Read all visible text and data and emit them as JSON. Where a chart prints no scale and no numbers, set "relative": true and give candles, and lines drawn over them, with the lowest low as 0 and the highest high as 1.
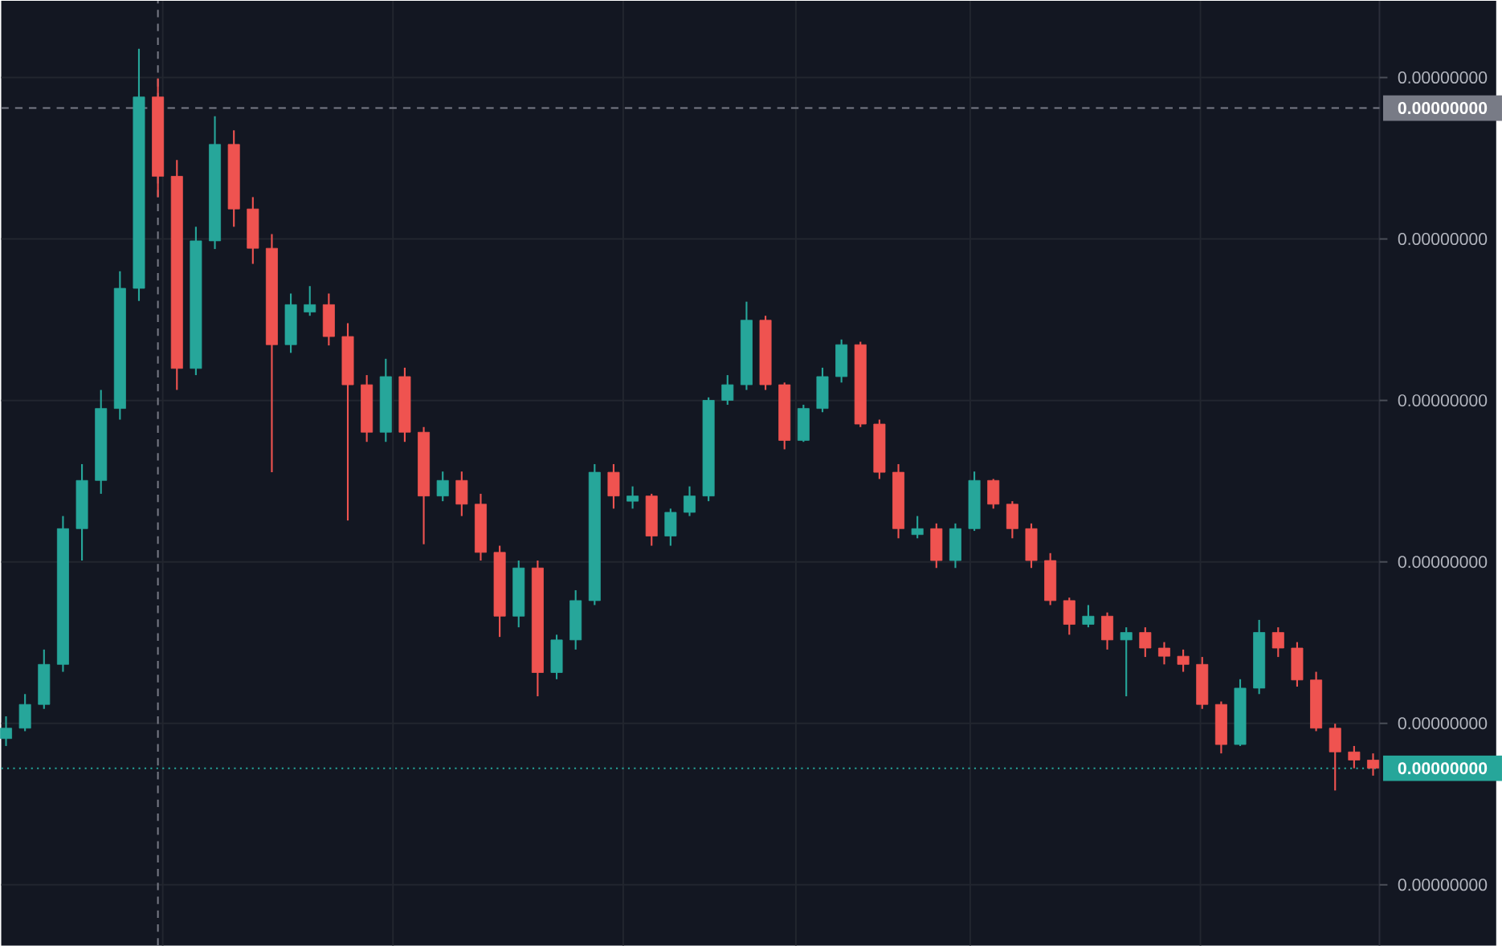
{
  "chart_data": {
    "type": "candlestick",
    "relative": true,
    "grid": true,
    "categories": [
      null,
      null,
      null,
      null,
      null,
      null,
      null,
      null,
      null,
      null,
      null,
      null,
      null,
      null,
      null,
      null,
      null,
      null,
      null,
      null,
      null,
      null,
      null,
      null,
      null,
      null,
      null,
      null,
      null,
      null,
      null,
      null,
      null,
      null,
      null,
      null,
      null,
      null,
      null,
      null,
      null,
      null,
      null,
      null,
      null,
      null,
      null,
      null,
      null,
      null,
      null,
      null,
      null,
      null,
      null,
      null,
      null,
      null,
      null,
      null,
      null,
      null,
      null,
      null,
      null,
      null,
      null,
      null,
      null,
      null,
      null,
      null,
      null
    ],
    "ohlc": [
      [
        0.07,
        0.1,
        0.06,
        0.084
      ],
      [
        0.084,
        0.13,
        0.08,
        0.116
      ],
      [
        0.116,
        0.19,
        0.11,
        0.17
      ],
      [
        0.17,
        0.37,
        0.16,
        0.353
      ],
      [
        0.353,
        0.44,
        0.31,
        0.418
      ],
      [
        0.418,
        0.54,
        0.4,
        0.515
      ],
      [
        0.515,
        0.7,
        0.5,
        0.677
      ],
      [
        0.677,
        1.0,
        0.66,
        0.935
      ],
      [
        0.935,
        0.96,
        0.8,
        0.828
      ],
      [
        0.828,
        0.85,
        0.54,
        0.569
      ],
      [
        0.569,
        0.76,
        0.56,
        0.741
      ],
      [
        0.741,
        0.909,
        0.73,
        0.871
      ],
      [
        0.871,
        0.89,
        0.76,
        0.784
      ],
      [
        0.784,
        0.8,
        0.71,
        0.731
      ],
      [
        0.731,
        0.75,
        0.429,
        0.601
      ],
      [
        0.601,
        0.67,
        0.59,
        0.655
      ],
      [
        0.645,
        0.68,
        0.64,
        0.655
      ],
      [
        0.655,
        0.67,
        0.6,
        0.612
      ],
      [
        0.612,
        0.63,
        0.364,
        0.547
      ],
      [
        0.547,
        0.56,
        0.47,
        0.483
      ],
      [
        0.483,
        0.582,
        0.47,
        0.558
      ],
      [
        0.558,
        0.57,
        0.47,
        0.483
      ],
      [
        0.483,
        0.49,
        0.332,
        0.397
      ],
      [
        0.397,
        0.43,
        0.39,
        0.418
      ],
      [
        0.418,
        0.43,
        0.37,
        0.386
      ],
      [
        0.386,
        0.4,
        0.31,
        0.321
      ],
      [
        0.321,
        0.33,
        0.207,
        0.235
      ],
      [
        0.235,
        0.31,
        0.22,
        0.3
      ],
      [
        0.3,
        0.31,
        0.127,
        0.159
      ],
      [
        0.159,
        0.21,
        0.15,
        0.203
      ],
      [
        0.203,
        0.27,
        0.19,
        0.256
      ],
      [
        0.256,
        0.44,
        0.25,
        0.429
      ],
      [
        0.429,
        0.44,
        0.38,
        0.397
      ],
      [
        0.39,
        0.41,
        0.38,
        0.397
      ],
      [
        0.397,
        0.4,
        0.33,
        0.343
      ],
      [
        0.343,
        0.38,
        0.33,
        0.375
      ],
      [
        0.375,
        0.41,
        0.37,
        0.397
      ],
      [
        0.397,
        0.53,
        0.39,
        0.526
      ],
      [
        0.526,
        0.56,
        0.52,
        0.547
      ],
      [
        0.547,
        0.659,
        0.54,
        0.634
      ],
      [
        0.634,
        0.64,
        0.54,
        0.547
      ],
      [
        0.547,
        0.55,
        0.46,
        0.472
      ],
      [
        0.472,
        0.52,
        0.47,
        0.515
      ],
      [
        0.515,
        0.57,
        0.51,
        0.558
      ],
      [
        0.558,
        0.608,
        0.55,
        0.601
      ],
      [
        0.601,
        0.605,
        0.49,
        0.494
      ],
      [
        0.494,
        0.5,
        0.42,
        0.429
      ],
      [
        0.429,
        0.44,
        0.34,
        0.353
      ],
      [
        0.345,
        0.37,
        0.34,
        0.353
      ],
      [
        0.353,
        0.36,
        0.3,
        0.31
      ],
      [
        0.31,
        0.36,
        0.3,
        0.353
      ],
      [
        0.353,
        0.43,
        0.35,
        0.418
      ],
      [
        0.418,
        0.42,
        0.38,
        0.386
      ],
      [
        0.386,
        0.39,
        0.34,
        0.353
      ],
      [
        0.353,
        0.36,
        0.3,
        0.31
      ],
      [
        0.31,
        0.32,
        0.25,
        0.256
      ],
      [
        0.256,
        0.26,
        0.21,
        0.224
      ],
      [
        0.224,
        0.25,
        0.22,
        0.235
      ],
      [
        0.235,
        0.24,
        0.19,
        0.203
      ],
      [
        0.203,
        0.22,
        0.127,
        0.213
      ],
      [
        0.213,
        0.22,
        0.18,
        0.192
      ],
      [
        0.192,
        0.2,
        0.17,
        0.181
      ],
      [
        0.181,
        0.19,
        0.16,
        0.17
      ],
      [
        0.17,
        0.18,
        0.11,
        0.116
      ],
      [
        0.116,
        0.12,
        0.05,
        0.062
      ],
      [
        0.062,
        0.15,
        0.06,
        0.138
      ],
      [
        0.138,
        0.23,
        0.13,
        0.213
      ],
      [
        0.213,
        0.22,
        0.18,
        0.192
      ],
      [
        0.192,
        0.2,
        0.14,
        0.149
      ],
      [
        0.149,
        0.16,
        0.08,
        0.084
      ],
      [
        0.084,
        0.09,
        0,
        0.052
      ],
      [
        0.052,
        0.06,
        0.03,
        0.041
      ],
      [
        0.041,
        0.05,
        0.02,
        0.03
      ]
    ],
    "colors": [
      "#26a69a",
      "#26a69a",
      "#26a69a",
      "#26a69a",
      "#26a69a",
      "#26a69a",
      "#26a69a",
      "#26a69a",
      "#ef5350",
      "#ef5350",
      "#26a69a",
      "#26a69a",
      "#ef5350",
      "#ef5350",
      "#ef5350",
      "#26a69a",
      "#26a69a",
      "#ef5350",
      "#ef5350",
      "#ef5350",
      "#26a69a",
      "#ef5350",
      "#ef5350",
      "#26a69a",
      "#ef5350",
      "#ef5350",
      "#ef5350",
      "#26a69a",
      "#ef5350",
      "#26a69a",
      "#26a69a",
      "#26a69a",
      "#ef5350",
      "#26a69a",
      "#ef5350",
      "#26a69a",
      "#26a69a",
      "#26a69a",
      "#26a69a",
      "#26a69a",
      "#ef5350",
      "#ef5350",
      "#26a69a",
      "#26a69a",
      "#26a69a",
      "#ef5350",
      "#ef5350",
      "#ef5350",
      "#26a69a",
      "#ef5350",
      "#26a69a",
      "#26a69a",
      "#ef5350",
      "#ef5350",
      "#ef5350",
      "#ef5350",
      "#ef5350",
      "#26a69a",
      "#ef5350",
      "#26a69a",
      "#ef5350",
      "#ef5350",
      "#ef5350",
      "#ef5350",
      "#ef5350",
      "#26a69a",
      "#26a69a",
      "#ef5350",
      "#ef5350",
      "#ef5350",
      "#ef5350",
      "#ef5350",
      "#ef5350"
    ],
    "ref_lines": [
      {
        "axis": "y",
        "value": 0.92,
        "color": "#787b86",
        "line_style": "dashed"
      },
      {
        "axis": "y",
        "value": 0.03,
        "color": "#26a69a",
        "line_style": "dotted"
      }
    ],
    "annotations": [
      "0.00000000",
      "0.00000000",
      "0.00000000",
      "0.00000000",
      "0.00000000",
      "0.00000000",
      "0.00000000",
      "0.00000000"
    ]
  }
}
